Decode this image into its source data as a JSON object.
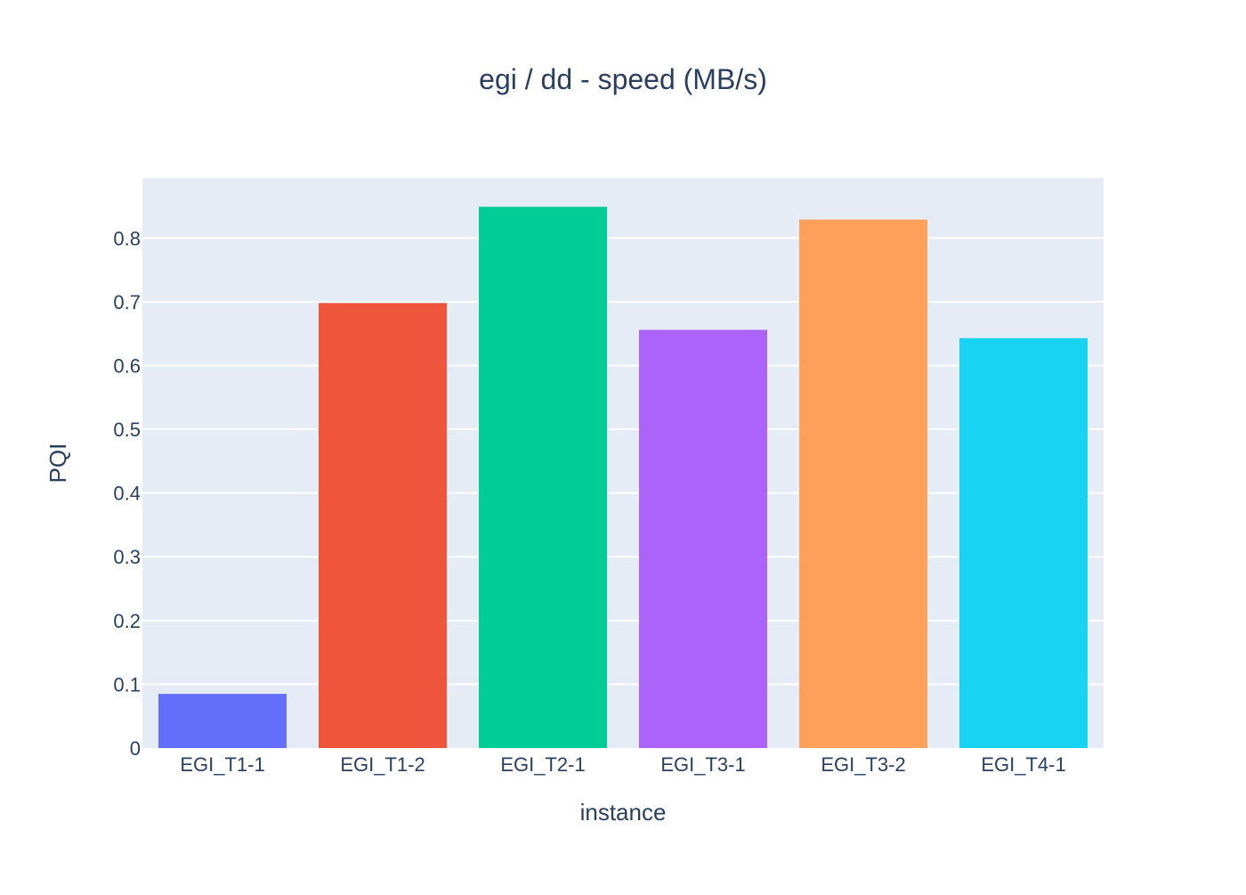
{
  "chart_data": {
    "type": "bar",
    "title": "egi / dd - speed (MB/s)",
    "xlabel": "instance",
    "ylabel": "PQI",
    "categories": [
      "EGI_T1-1",
      "EGI_T1-2",
      "EGI_T2-1",
      "EGI_T3-1",
      "EGI_T3-2",
      "EGI_T4-1"
    ],
    "values": [
      0.085,
      0.698,
      0.849,
      0.656,
      0.829,
      0.643
    ],
    "colors": [
      "#636efa",
      "#ef553b",
      "#00cc96",
      "#ab63fa",
      "#ffa15a",
      "#19d3f3"
    ],
    "ylim": [
      0,
      0.894
    ],
    "yticks": [
      0,
      0.1,
      0.2,
      0.3,
      0.4,
      0.5,
      0.6,
      0.7,
      0.8
    ],
    "ytick_labels": [
      "0",
      "0.1",
      "0.2",
      "0.3",
      "0.4",
      "0.5",
      "0.6",
      "0.7",
      "0.8"
    ],
    "grid": true,
    "plot_background": "#e5ecf6",
    "grid_color": "#ffffff",
    "text_color": "#2a3f5f"
  }
}
